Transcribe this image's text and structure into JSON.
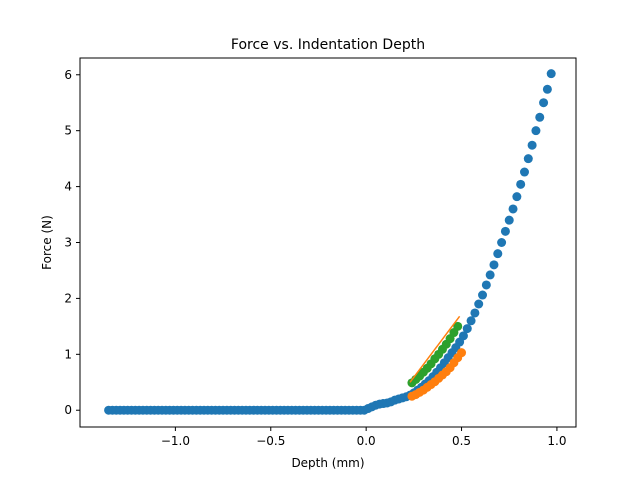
{
  "chart_data": {
    "type": "scatter",
    "title": "Force vs. Indentation Depth",
    "xlabel": "Depth (mm)",
    "ylabel": "Force (N)",
    "xlim": [
      -1.5,
      1.1
    ],
    "ylim": [
      -0.3,
      6.3
    ],
    "xticks": [
      {
        "value": -1.0,
        "label": "−1.0"
      },
      {
        "value": -0.5,
        "label": "−0.5"
      },
      {
        "value": 0.0,
        "label": "0.0"
      },
      {
        "value": 0.5,
        "label": "0.5"
      },
      {
        "value": 1.0,
        "label": "1.0"
      }
    ],
    "yticks": [
      {
        "value": 0,
        "label": "0"
      },
      {
        "value": 1,
        "label": "1"
      },
      {
        "value": 2,
        "label": "2"
      },
      {
        "value": 3,
        "label": "3"
      },
      {
        "value": 4,
        "label": "4"
      },
      {
        "value": 5,
        "label": "5"
      },
      {
        "value": 6,
        "label": "6"
      }
    ],
    "grid": false,
    "legend": "none",
    "series": [
      {
        "mode": "markers",
        "color": "#1f77b4",
        "x": [
          -1.35,
          -1.33,
          -1.31,
          -1.29,
          -1.27,
          -1.25,
          -1.23,
          -1.21,
          -1.19,
          -1.17,
          -1.15,
          -1.13,
          -1.11,
          -1.09,
          -1.07,
          -1.05,
          -1.03,
          -1.01,
          -0.99,
          -0.97,
          -0.95,
          -0.93,
          -0.91,
          -0.89,
          -0.87,
          -0.85,
          -0.83,
          -0.81,
          -0.79,
          -0.77,
          -0.75,
          -0.73,
          -0.71,
          -0.69,
          -0.67,
          -0.65,
          -0.63,
          -0.61,
          -0.59,
          -0.57,
          -0.55,
          -0.53,
          -0.51,
          -0.49,
          -0.47,
          -0.45,
          -0.43,
          -0.41,
          -0.39,
          -0.37,
          -0.35,
          -0.33,
          -0.31,
          -0.29,
          -0.27,
          -0.25,
          -0.23,
          -0.21,
          -0.19,
          -0.17,
          -0.15,
          -0.13,
          -0.11,
          -0.09,
          -0.07,
          -0.05,
          -0.03,
          -0.01,
          0.01,
          0.03,
          0.05,
          0.07,
          0.09,
          0.11,
          0.13,
          0.15,
          0.17,
          0.19,
          0.21,
          0.23,
          0.25,
          0.27,
          0.29,
          0.31,
          0.33,
          0.35,
          0.37,
          0.39,
          0.41,
          0.43,
          0.45,
          0.47,
          0.49,
          0.51,
          0.53,
          0.55,
          0.57,
          0.59,
          0.61,
          0.63,
          0.65,
          0.67,
          0.69,
          0.71,
          0.73,
          0.75,
          0.77,
          0.79,
          0.81,
          0.83,
          0.85,
          0.87,
          0.89,
          0.91,
          0.93,
          0.95,
          0.97
        ],
        "y": [
          0,
          0,
          0,
          0,
          0,
          0,
          0,
          0,
          0,
          0,
          0,
          0,
          0,
          0,
          0,
          0,
          0,
          0,
          0,
          0,
          0,
          0,
          0,
          0,
          0,
          0,
          0,
          0,
          0,
          0,
          0,
          0,
          0,
          0,
          0,
          0,
          0,
          0,
          0,
          0,
          0,
          0,
          0,
          0,
          0,
          0,
          0,
          0,
          0,
          0,
          0,
          0,
          0,
          0,
          0,
          0,
          0,
          0,
          0,
          0,
          0,
          0,
          0,
          0,
          0,
          0,
          0,
          0,
          0.03,
          0.06,
          0.09,
          0.11,
          0.12,
          0.13,
          0.15,
          0.18,
          0.2,
          0.22,
          0.24,
          0.27,
          0.31,
          0.36,
          0.41,
          0.47,
          0.53,
          0.6,
          0.68,
          0.76,
          0.85,
          0.94,
          1.03,
          1.12,
          1.22,
          1.33,
          1.46,
          1.6,
          1.74,
          1.9,
          2.06,
          2.24,
          2.42,
          2.6,
          2.8,
          3.0,
          3.2,
          3.4,
          3.6,
          3.82,
          4.04,
          4.26,
          4.5,
          4.74,
          5.0,
          5.24,
          5.5,
          5.74,
          6.02
        ]
      },
      {
        "mode": "markers",
        "color": "#ff7f0e",
        "x": [
          0.24,
          0.26,
          0.28,
          0.3,
          0.32,
          0.34,
          0.36,
          0.38,
          0.4,
          0.42,
          0.44,
          0.46,
          0.48,
          0.5
        ],
        "y": [
          0.25,
          0.28,
          0.32,
          0.36,
          0.41,
          0.46,
          0.51,
          0.57,
          0.63,
          0.69,
          0.76,
          0.85,
          0.94,
          1.03
        ]
      },
      {
        "mode": "markers",
        "color": "#2ca02c",
        "x": [
          0.24,
          0.26,
          0.28,
          0.3,
          0.32,
          0.34,
          0.36,
          0.38,
          0.4,
          0.42,
          0.44,
          0.46,
          0.48
        ],
        "y": [
          0.49,
          0.55,
          0.61,
          0.68,
          0.75,
          0.83,
          0.92,
          1.0,
          1.09,
          1.18,
          1.28,
          1.39,
          1.5
        ]
      },
      {
        "mode": "line",
        "color": "#ff7f0e",
        "x": [
          0.23,
          0.49
        ],
        "y": [
          0.5,
          1.68
        ]
      }
    ]
  }
}
